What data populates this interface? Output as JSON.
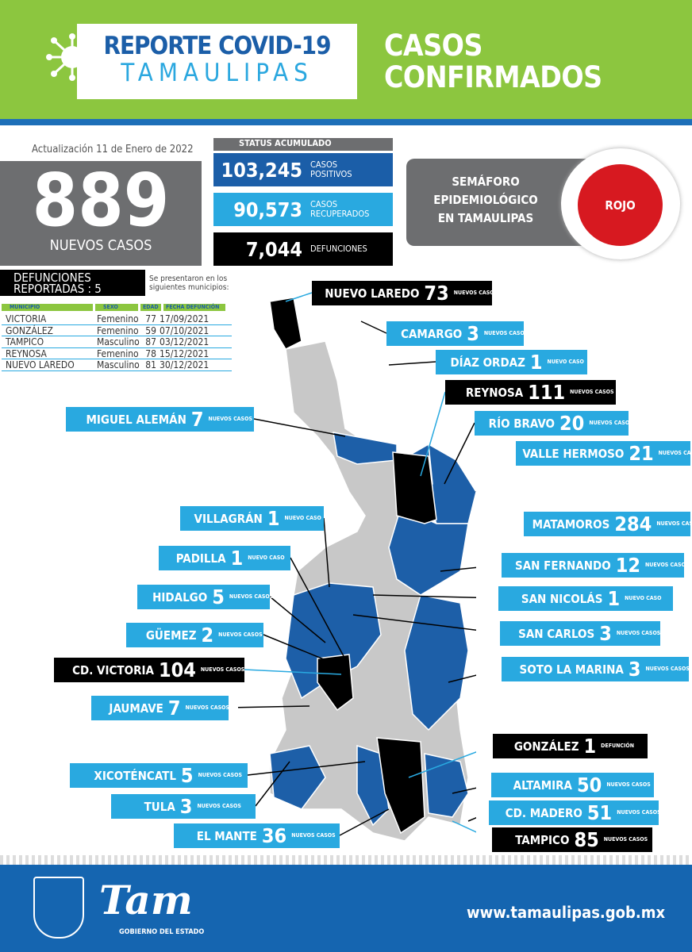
{
  "header": {
    "title_line1": "REPORTE COVID-19",
    "title_line2": "TAMAULIPAS",
    "section_title_line1": "CASOS",
    "section_title_line2": "CONFIRMADOS"
  },
  "update": "Actualización 11 de Enero de 2022",
  "new_cases": {
    "value": "889",
    "label": "NUEVOS CASOS"
  },
  "status": {
    "heading": "STATUS ACUMULADO",
    "positives": {
      "value": "103,245",
      "label1": "CASOS",
      "label2": "POSITIVOS",
      "color": "#1b5ea8"
    },
    "recovered": {
      "value": "90,573",
      "label1": "CASOS",
      "label2": "RECUPERADOS",
      "color": "#29a9e0"
    },
    "deaths": {
      "value": "7,044",
      "label1": "DEFUNCIONES",
      "color": "#000000"
    }
  },
  "semaforo": {
    "line1": "SEMÁFORO",
    "line2": "EPIDEMIOLÓGICO",
    "line3": "EN TAMAULIPAS",
    "level": "ROJO",
    "level_color": "#d71920"
  },
  "deaths_reported": {
    "line1": "DEFUNCIONES",
    "line2": "REPORTADAS : 5",
    "note_line1": "Se presentaron en los",
    "note_line2": "siguientes municipios:",
    "columns": [
      "MUNICIPIO",
      "SEXO",
      "EDAD",
      "FECHA DEFUNCIÓN"
    ],
    "rows": [
      [
        "VICTORIA",
        "Femenino",
        "77",
        "17/09/2021"
      ],
      [
        "GONZÁLEZ",
        "Femenino",
        "59",
        "07/10/2021"
      ],
      [
        "TAMPICO",
        "Masculino",
        "87",
        "03/12/2021"
      ],
      [
        "REYNOSA",
        "Femenino",
        "78",
        "15/12/2021"
      ],
      [
        "NUEVO LAREDO",
        "Masculino",
        "81",
        "30/12/2021"
      ]
    ]
  },
  "municipalities": [
    {
      "name": "NUEVO LAREDO",
      "count": "73",
      "suffix": "NUEVOS CASOS",
      "style": "black"
    },
    {
      "name": "CAMARGO",
      "count": "3",
      "suffix": "NUEVOS CASOS",
      "style": "blue"
    },
    {
      "name": "DÍAZ ORDAZ",
      "count": "1",
      "suffix": "NUEVO CASO",
      "style": "blue"
    },
    {
      "name": "REYNOSA",
      "count": "111",
      "suffix": "NUEVOS CASOS",
      "style": "black"
    },
    {
      "name": "MIGUEL ALEMÁN",
      "count": "7",
      "suffix": "NUEVOS CASOS",
      "style": "blue"
    },
    {
      "name": "RÍO BRAVO",
      "count": "20",
      "suffix": "NUEVOS CASOS",
      "style": "blue"
    },
    {
      "name": "VALLE HERMOSO",
      "count": "21",
      "suffix": "NUEVOS CASOS",
      "style": "blue"
    },
    {
      "name": "VILLAGRÁN",
      "count": "1",
      "suffix": "NUEVO CASO",
      "style": "blue"
    },
    {
      "name": "MATAMOROS",
      "count": "284",
      "suffix": "NUEVOS CASOS",
      "style": "blue"
    },
    {
      "name": "PADILLA",
      "count": "1",
      "suffix": "NUEVO CASO",
      "style": "blue"
    },
    {
      "name": "SAN FERNANDO",
      "count": "12",
      "suffix": "NUEVOS CASOS",
      "style": "blue"
    },
    {
      "name": "HIDALGO",
      "count": "5",
      "suffix": "NUEVOS CASOS",
      "style": "blue"
    },
    {
      "name": "SAN NICOLÁS",
      "count": "1",
      "suffix": "NUEVO CASO",
      "style": "blue"
    },
    {
      "name": "GÜEMEZ",
      "count": "2",
      "suffix": "NUEVOS CASOS",
      "style": "blue"
    },
    {
      "name": "SAN CARLOS",
      "count": "3",
      "suffix": "NUEVOS CASOS",
      "style": "blue"
    },
    {
      "name": "CD. VICTORIA",
      "count": "104",
      "suffix": "NUEVOS CASOS",
      "style": "black"
    },
    {
      "name": "SOTO LA MARINA",
      "count": "3",
      "suffix": "NUEVOS CASOS",
      "style": "blue"
    },
    {
      "name": "JAUMAVE",
      "count": "7",
      "suffix": "NUEVOS CASOS",
      "style": "blue"
    },
    {
      "name": "GONZÁLEZ",
      "count": "1",
      "suffix": "DEFUNCIÓN",
      "style": "black"
    },
    {
      "name": "XICOTÉNCATL",
      "count": "5",
      "suffix": "NUEVOS CASOS",
      "style": "blue"
    },
    {
      "name": "ALTAMIRA",
      "count": "50",
      "suffix": "NUEVOS CASOS",
      "style": "blue"
    },
    {
      "name": "TULA",
      "count": "3",
      "suffix": "NUEVOS CASOS",
      "style": "blue"
    },
    {
      "name": "CD. MADERO",
      "count": "51",
      "suffix": "NUEVOS CASOS",
      "style": "blue"
    },
    {
      "name": "EL MANTE",
      "count": "36",
      "suffix": "NUEVOS CASOS",
      "style": "blue"
    },
    {
      "name": "TAMPICO",
      "count": "85",
      "suffix": "NUEVOS CASOS",
      "style": "black"
    }
  ],
  "colors": {
    "green": "#8cc63f",
    "dark_blue": "#1b5ea8",
    "light_blue": "#29a9e0",
    "map_case": "#1d5fa8",
    "map_none": "#c8c8c8",
    "map_highlight": "#000000"
  },
  "footer": {
    "logo_text": "Tam",
    "gobierno": "GOBIERNO DEL ESTADO",
    "website": "www.tamaulipas.gob.mx"
  }
}
